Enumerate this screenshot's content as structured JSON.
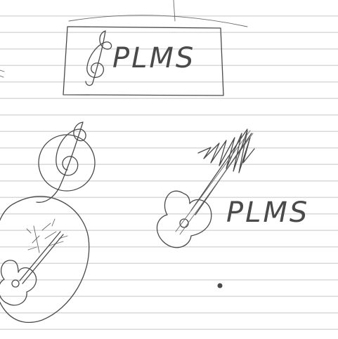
{
  "sketches": [
    {
      "id": "logo-boxed",
      "text": "PLMS",
      "symbol": "treble-clef-icon"
    },
    {
      "id": "logo-guitar",
      "text": "PLMS",
      "symbol": "guitar-icon"
    },
    {
      "id": "clef-circle-tree-guitar",
      "text": "",
      "symbol": "treble-clef-icon"
    }
  ],
  "colors": {
    "paper": "#ffffff",
    "rule_line": "#d9d9d9",
    "ink": "#4a4a4a"
  }
}
